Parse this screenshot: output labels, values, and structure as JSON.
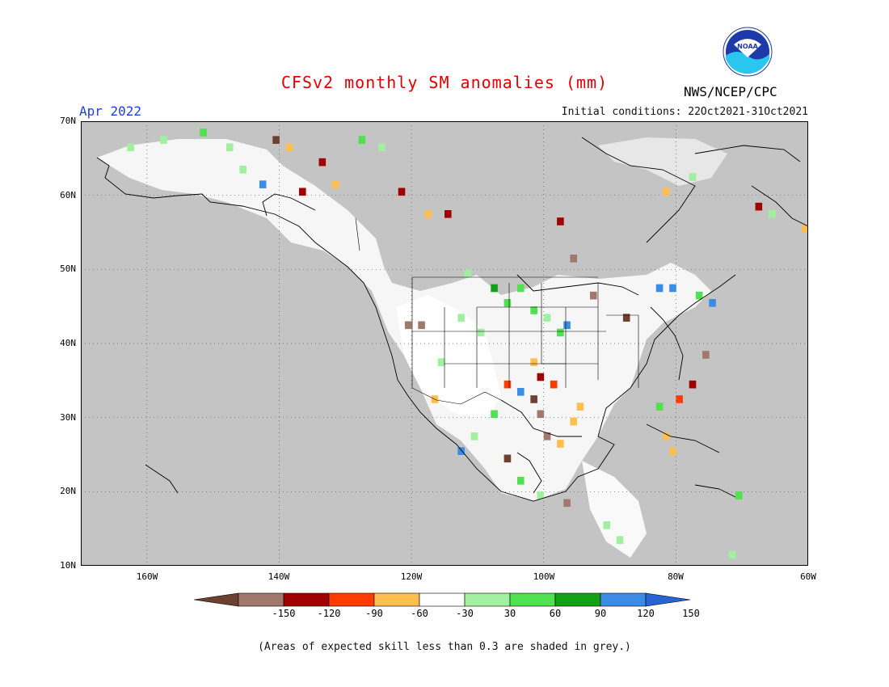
{
  "header": {
    "title": "CFSv2 monthly SM anomalies (mm)",
    "period": "Apr 2022",
    "initial_conditions": "Initial conditions: 22Oct2021-31Oct2021",
    "agency": "NWS/NCEP/CPC",
    "logo_text": "NOAA"
  },
  "map": {
    "region": "North America",
    "lon_range": [
      -170,
      -60
    ],
    "lat_range": [
      10,
      70
    ],
    "lat_labels": [
      {
        "lat": 70,
        "text": "70N"
      },
      {
        "lat": 60,
        "text": "60N"
      },
      {
        "lat": 50,
        "text": "50N"
      },
      {
        "lat": 40,
        "text": "40N"
      },
      {
        "lat": 30,
        "text": "30N"
      },
      {
        "lat": 20,
        "text": "20N"
      },
      {
        "lat": 10,
        "text": "10N"
      }
    ],
    "lon_labels": [
      {
        "lon": -160,
        "text": "160W"
      },
      {
        "lon": -140,
        "text": "140W"
      },
      {
        "lon": -120,
        "text": "120W"
      },
      {
        "lon": -100,
        "text": "100W"
      },
      {
        "lon": -80,
        "text": "80W"
      },
      {
        "lon": -60,
        "text": "60W"
      }
    ],
    "colors": {
      "grey": "#c4c4c4",
      "ocean": "#ffffff",
      "land_default": "#ffffff"
    },
    "anomaly_cells": [
      {
        "lon": -163,
        "lat": 67,
        "bin": "g60"
      },
      {
        "lon": -158,
        "lat": 68,
        "bin": "g60"
      },
      {
        "lon": -152,
        "lat": 69,
        "bin": "g90"
      },
      {
        "lon": -148,
        "lat": 67,
        "bin": "g60"
      },
      {
        "lon": -146,
        "lat": 64,
        "bin": "g60"
      },
      {
        "lon": -143,
        "lat": 62,
        "bin": "b150"
      },
      {
        "lon": -141,
        "lat": 68,
        "bin": "m150"
      },
      {
        "lon": -139,
        "lat": 67,
        "bin": "o30"
      },
      {
        "lon": -137,
        "lat": 61,
        "bin": "r90"
      },
      {
        "lon": -134,
        "lat": 65,
        "bin": "r90"
      },
      {
        "lon": -132,
        "lat": 62,
        "bin": "o30"
      },
      {
        "lon": -128,
        "lat": 68,
        "bin": "g90"
      },
      {
        "lon": -125,
        "lat": 67,
        "bin": "g60"
      },
      {
        "lon": -122,
        "lat": 61,
        "bin": "r90"
      },
      {
        "lon": -118,
        "lat": 58,
        "bin": "o30"
      },
      {
        "lon": -115,
        "lat": 58,
        "bin": "r90"
      },
      {
        "lon": -112,
        "lat": 50,
        "bin": "g60"
      },
      {
        "lon": -108,
        "lat": 48,
        "bin": "g120"
      },
      {
        "lon": -106,
        "lat": 46,
        "bin": "g90"
      },
      {
        "lon": -104,
        "lat": 48,
        "bin": "g90"
      },
      {
        "lon": -102,
        "lat": 45,
        "bin": "g90"
      },
      {
        "lon": -100,
        "lat": 44,
        "bin": "g60"
      },
      {
        "lon": -98,
        "lat": 42,
        "bin": "g90"
      },
      {
        "lon": -97,
        "lat": 43,
        "bin": "b150"
      },
      {
        "lon": -110,
        "lat": 42,
        "bin": "g60"
      },
      {
        "lon": -113,
        "lat": 44,
        "bin": "g60"
      },
      {
        "lon": -121,
        "lat": 43,
        "bin": "m120"
      },
      {
        "lon": -119,
        "lat": 43,
        "bin": "m120"
      },
      {
        "lon": -116,
        "lat": 38,
        "bin": "g60"
      },
      {
        "lon": -102,
        "lat": 38,
        "bin": "o30"
      },
      {
        "lon": -101,
        "lat": 36,
        "bin": "r90"
      },
      {
        "lon": -99,
        "lat": 35,
        "bin": "r60"
      },
      {
        "lon": -102,
        "lat": 33,
        "bin": "m150"
      },
      {
        "lon": -101,
        "lat": 31,
        "bin": "m120"
      },
      {
        "lon": -100,
        "lat": 28,
        "bin": "m120"
      },
      {
        "lon": -98,
        "lat": 27,
        "bin": "o30"
      },
      {
        "lon": -96,
        "lat": 30,
        "bin": "o30"
      },
      {
        "lon": -95,
        "lat": 32,
        "bin": "o30"
      },
      {
        "lon": -106,
        "lat": 35,
        "bin": "r60"
      },
      {
        "lon": -104,
        "lat": 34,
        "bin": "b150"
      },
      {
        "lon": -108,
        "lat": 31,
        "bin": "g90"
      },
      {
        "lon": -111,
        "lat": 28,
        "bin": "g60"
      },
      {
        "lon": -113,
        "lat": 26,
        "bin": "b150"
      },
      {
        "lon": -117,
        "lat": 33,
        "bin": "o30"
      },
      {
        "lon": -106,
        "lat": 25,
        "bin": "m150"
      },
      {
        "lon": -104,
        "lat": 22,
        "bin": "g90"
      },
      {
        "lon": -101,
        "lat": 20,
        "bin": "g60"
      },
      {
        "lon": -97,
        "lat": 19,
        "bin": "m120"
      },
      {
        "lon": -91,
        "lat": 16,
        "bin": "g60"
      },
      {
        "lon": -89,
        "lat": 14,
        "bin": "g60"
      },
      {
        "lon": -82,
        "lat": 28,
        "bin": "o30"
      },
      {
        "lon": -81,
        "lat": 26,
        "bin": "o30"
      },
      {
        "lon": -83,
        "lat": 32,
        "bin": "g90"
      },
      {
        "lon": -80,
        "lat": 33,
        "bin": "r60"
      },
      {
        "lon": -78,
        "lat": 35,
        "bin": "r90"
      },
      {
        "lon": -76,
        "lat": 39,
        "bin": "m120"
      },
      {
        "lon": -83,
        "lat": 48,
        "bin": "b150"
      },
      {
        "lon": -81,
        "lat": 48,
        "bin": "b150"
      },
      {
        "lon": -77,
        "lat": 47,
        "bin": "g90"
      },
      {
        "lon": -75,
        "lat": 46,
        "bin": "b150"
      },
      {
        "lon": -88,
        "lat": 44,
        "bin": "m150"
      },
      {
        "lon": -93,
        "lat": 47,
        "bin": "m120"
      },
      {
        "lon": -98,
        "lat": 57,
        "bin": "r90"
      },
      {
        "lon": -96,
        "lat": 52,
        "bin": "m120"
      },
      {
        "lon": -68,
        "lat": 59,
        "bin": "r90"
      },
      {
        "lon": -66,
        "lat": 58,
        "bin": "g60"
      },
      {
        "lon": -61,
        "lat": 56,
        "bin": "o30"
      },
      {
        "lon": -71,
        "lat": 20,
        "bin": "g90"
      },
      {
        "lon": -72,
        "lat": 12,
        "bin": "g60"
      },
      {
        "lon": -78,
        "lat": 63,
        "bin": "g60"
      },
      {
        "lon": -82,
        "lat": 61,
        "bin": "o30"
      }
    ]
  },
  "colorbar": {
    "bins": [
      {
        "key": "m150",
        "color": "#6e4030"
      },
      {
        "key": "m120",
        "color": "#a0786c"
      },
      {
        "key": "r90",
        "color": "#a00000"
      },
      {
        "key": "r60",
        "color": "#ff3c00"
      },
      {
        "key": "o30",
        "color": "#ffbe50"
      },
      {
        "key": "w",
        "color": "#ffffff"
      },
      {
        "key": "g60",
        "color": "#a0f0a0"
      },
      {
        "key": "g90",
        "color": "#50e050"
      },
      {
        "key": "g120",
        "color": "#14a014"
      },
      {
        "key": "b150",
        "color": "#3c8ce6"
      },
      {
        "key": "bmax",
        "color": "#2864d2"
      }
    ],
    "labels": [
      "-150",
      "-120",
      "-90",
      "-60",
      "-30",
      "30",
      "60",
      "90",
      "120",
      "150"
    ]
  },
  "footnote": "(Areas of expected skill less than 0.3 are shaded in grey.)"
}
